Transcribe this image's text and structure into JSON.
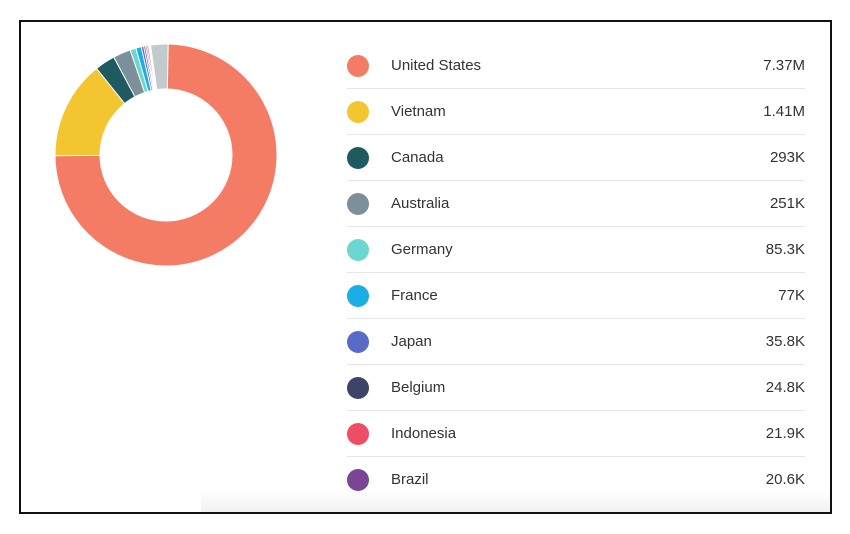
{
  "chart_data": {
    "type": "pie",
    "variant": "donut",
    "title": "",
    "legend_placement": "right",
    "categories": [
      "United States",
      "Vietnam",
      "Canada",
      "Australia",
      "Germany",
      "France",
      "Japan",
      "Belgium",
      "Indonesia",
      "Brazil"
    ],
    "value_labels": [
      "7.37M",
      "1.41M",
      "293K",
      "251K",
      "85.3K",
      "77K",
      "35.8K",
      "24.8K",
      "21.9K",
      "20.6K"
    ],
    "values": [
      7370000,
      1410000,
      293000,
      251000,
      85300,
      77000,
      35800,
      24800,
      21900,
      20600
    ],
    "other_value": 250000,
    "colors": [
      "#f47c64",
      "#f2c531",
      "#1e5b61",
      "#7b909b",
      "#6cd6d0",
      "#1aaee4",
      "#5a6bc7",
      "#3d4468",
      "#ef4d65",
      "#7a4595"
    ],
    "other_color": "#c3cacd"
  }
}
